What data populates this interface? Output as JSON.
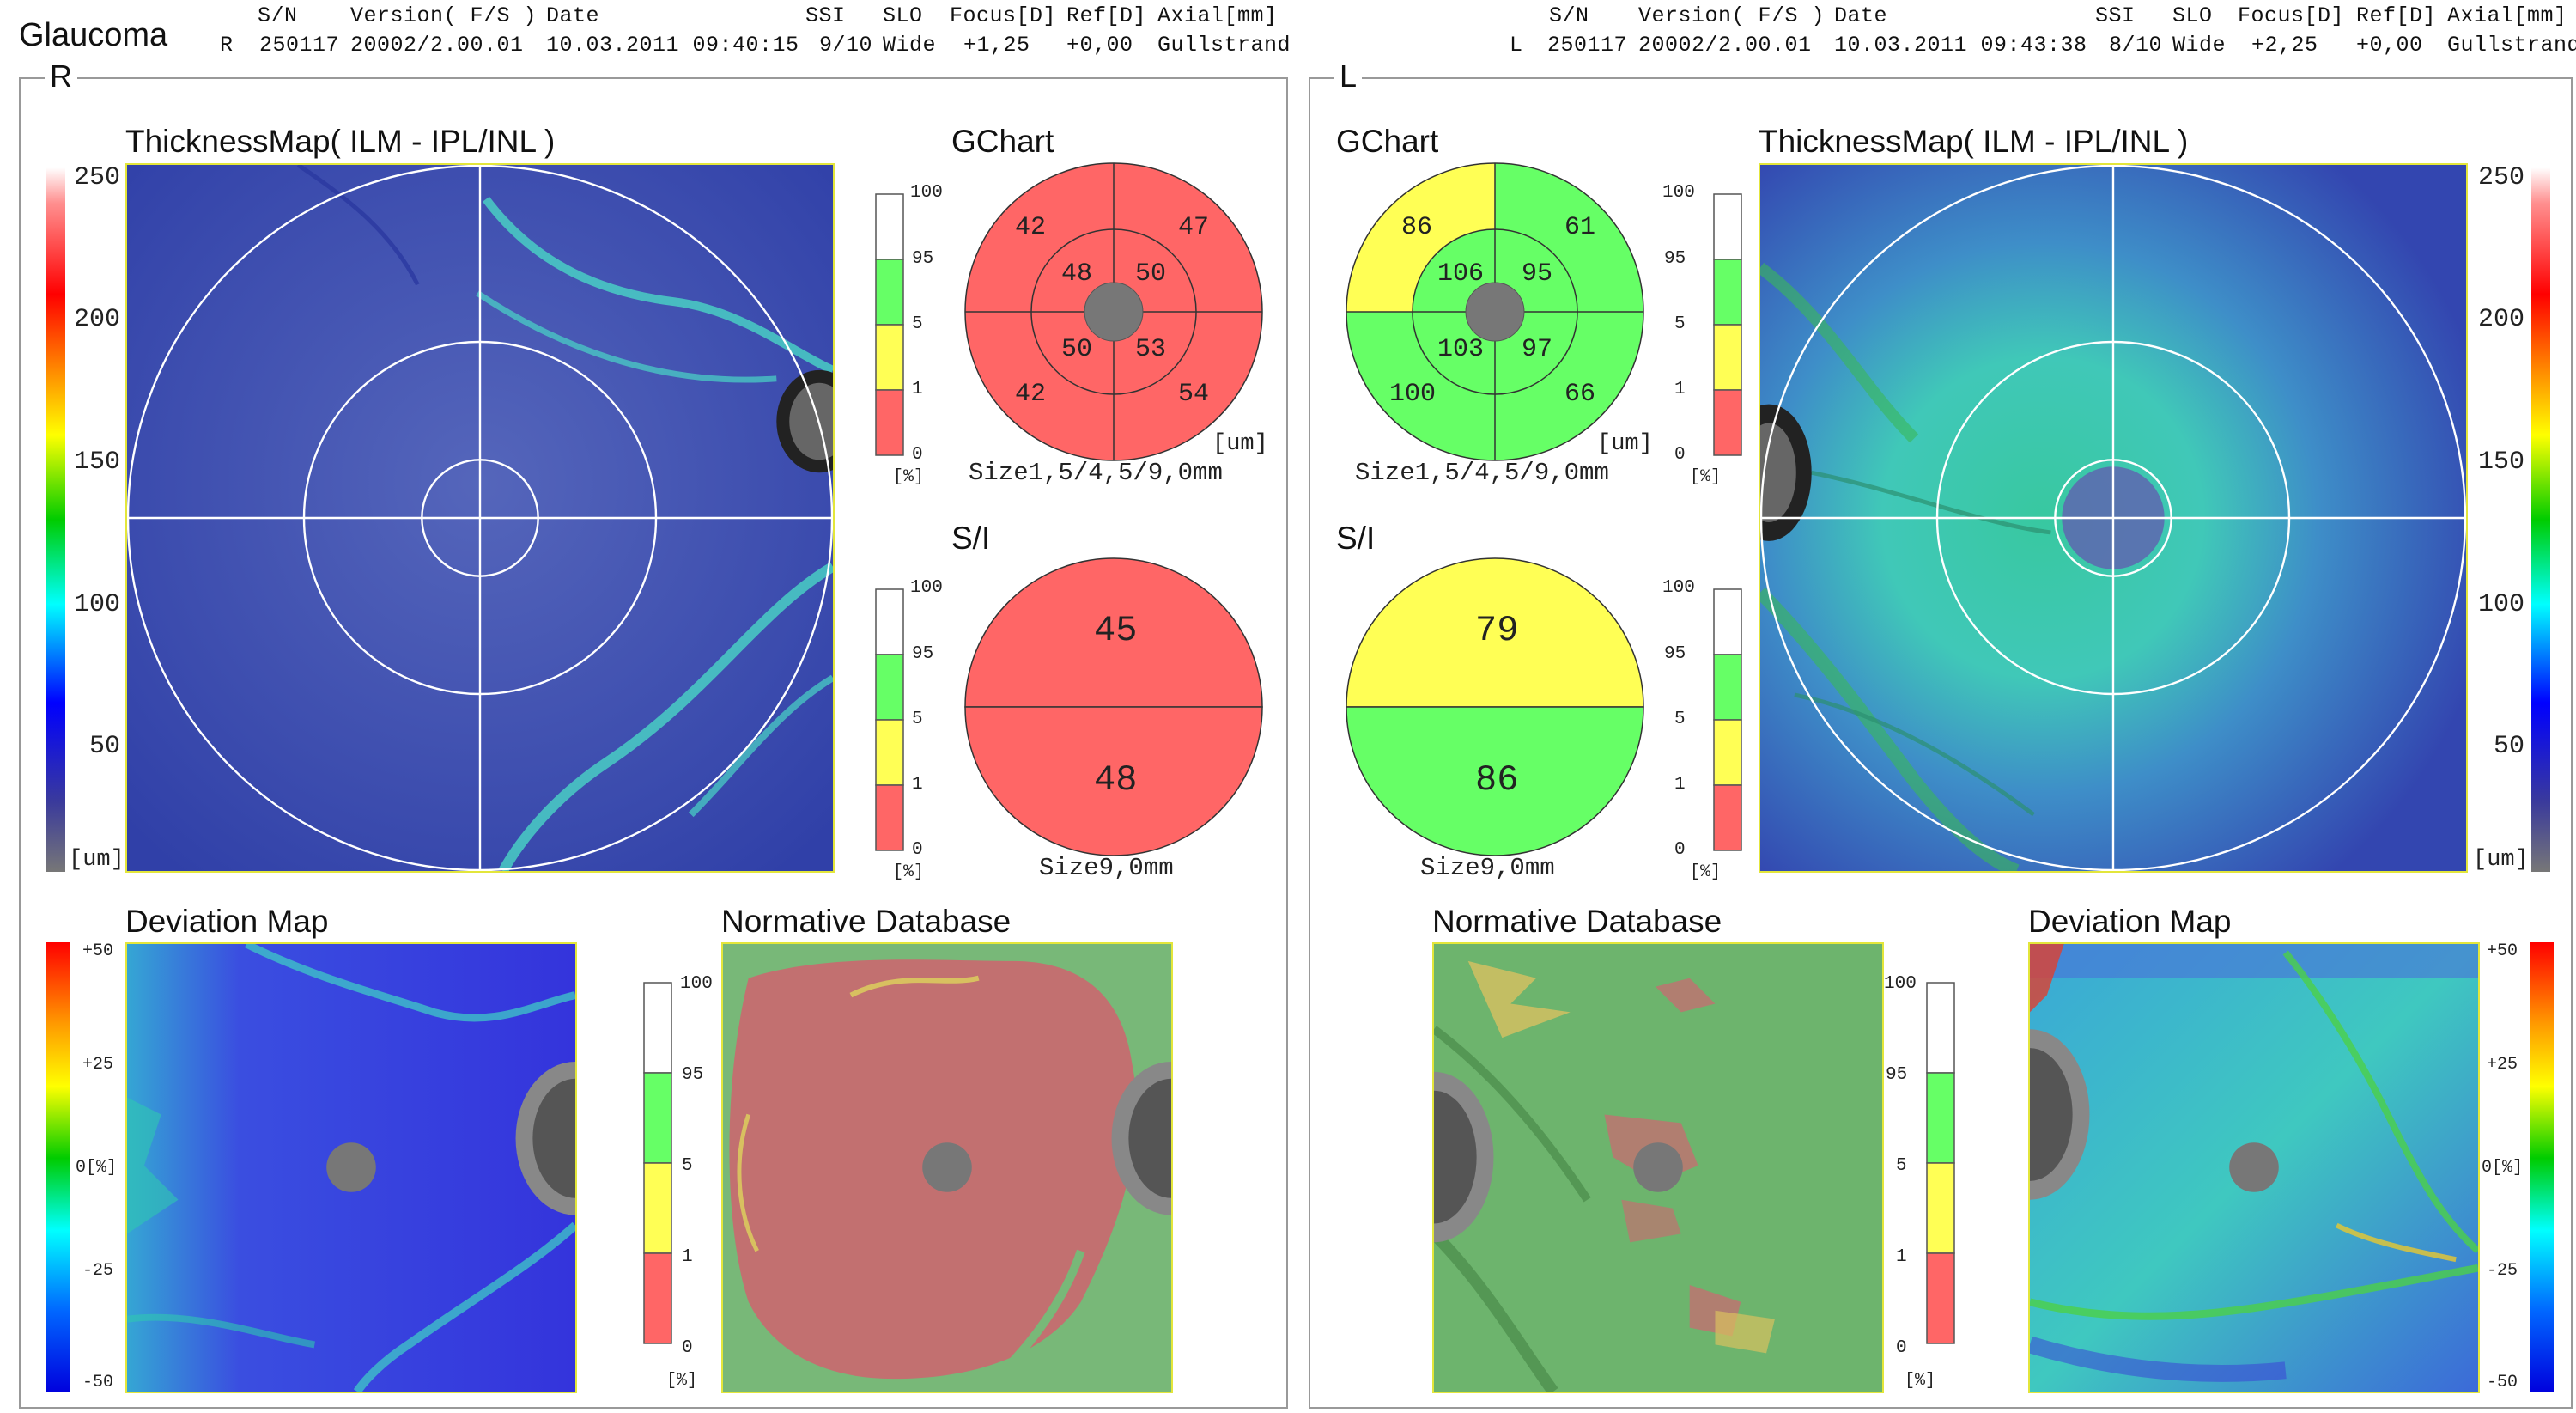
{
  "report": {
    "title": "Glaucoma"
  },
  "header": {
    "columns": [
      "S/N",
      "Version( F/S )",
      "Date",
      "SSI",
      "SLO",
      "Focus[D]",
      "Ref[D]",
      "Axial[mm]"
    ],
    "right": {
      "eye": "R",
      "sn": "250117",
      "version": "20002/2.00.01",
      "date": "10.03.2011 09:40:15",
      "ssi": "9/10",
      "slo": "Wide",
      "focus": "+1,25",
      "ref": "+0,00",
      "axial": "Gullstrand"
    },
    "left": {
      "eye": "L",
      "sn": "250117",
      "version": "20002/2.00.01",
      "date": "10.03.2011 09:43:38",
      "ssi": "8/10",
      "slo": "Wide",
      "focus": "+2,25",
      "ref": "+0,00",
      "axial": "Gullstrand"
    }
  },
  "titles": {
    "thickness_map": "ThicknessMap( ILM - IPL/INL )",
    "gchart": "GChart",
    "si": "S/I",
    "deviation_map": "Deviation Map",
    "normative_database": "Normative Database"
  },
  "thickness_scale": {
    "ticks": [
      "250",
      "200",
      "150",
      "100",
      "50"
    ],
    "unit": "[um]"
  },
  "deviation_scale": {
    "ticks": [
      "+50",
      "+25",
      "0[%]",
      "-25",
      "-50"
    ]
  },
  "percentile_scale": {
    "ticks": [
      "100",
      "95",
      "5",
      "1",
      "0"
    ],
    "unit": "[%]"
  },
  "gchart_unit": "[um]",
  "gchart_size_label": "Size1,5/4,5/9,0mm",
  "si_size_label": "Size9,0mm",
  "right_eye": {
    "label": "R",
    "gchart": {
      "outer_tl": "42",
      "outer_tr": "47",
      "inner_tl": "48",
      "inner_tr": "50",
      "inner_bl": "50",
      "inner_br": "53",
      "outer_bl": "42",
      "outer_br": "54"
    },
    "si": {
      "superior": "45",
      "inferior": "48"
    }
  },
  "left_eye": {
    "label": "L",
    "gchart": {
      "outer_tl": "86",
      "outer_tr": "61",
      "inner_tl": "106",
      "inner_tr": "95",
      "inner_bl": "103",
      "inner_br": "97",
      "outer_bl": "100",
      "outer_br": "66"
    },
    "si": {
      "superior": "79",
      "inferior": "86"
    }
  },
  "colors": {
    "red": "#ff6666",
    "yellow": "#ffff55",
    "green": "#66ff66",
    "white": "#ffffff",
    "center": "#777777"
  }
}
